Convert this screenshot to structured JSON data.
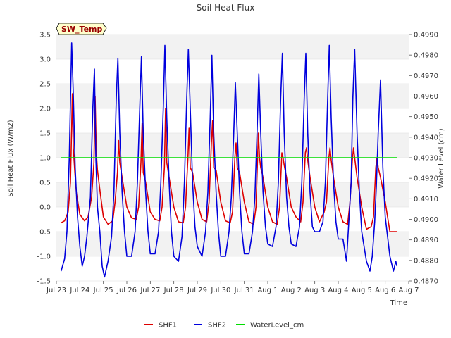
{
  "chart_data": {
    "type": "line",
    "title": "Soil Heat Flux",
    "xlabel": "Time",
    "ylabel": "Soil Heat Flux (W/m2)",
    "y2label": "Water Level (cm)",
    "annotation": "SW_Temp",
    "xlim": [
      0,
      15
    ],
    "ylim": [
      -1.5,
      3.5
    ],
    "y2lim": [
      0.487,
      0.499
    ],
    "x_ticks": [
      {
        "value": 0,
        "label": "Jul 23"
      },
      {
        "value": 1,
        "label": "Jul 24"
      },
      {
        "value": 2,
        "label": "Jul 25"
      },
      {
        "value": 3,
        "label": "Jul 26"
      },
      {
        "value": 4,
        "label": "Jul 27"
      },
      {
        "value": 5,
        "label": "Jul 28"
      },
      {
        "value": 6,
        "label": "Jul 29"
      },
      {
        "value": 7,
        "label": "Jul 30"
      },
      {
        "value": 8,
        "label": "Jul 31"
      },
      {
        "value": 9,
        "label": "Aug 1"
      },
      {
        "value": 10,
        "label": "Aug 2"
      },
      {
        "value": 11,
        "label": "Aug 3"
      },
      {
        "value": 12,
        "label": "Aug 4"
      },
      {
        "value": 13,
        "label": "Aug 5"
      },
      {
        "value": 14,
        "label": "Aug 6"
      },
      {
        "value": 15,
        "label": "Aug 7"
      }
    ],
    "y_ticks": [
      {
        "value": -1.5,
        "label": "-1.5"
      },
      {
        "value": -1.0,
        "label": "-1.0"
      },
      {
        "value": -0.5,
        "label": "-0.5"
      },
      {
        "value": 0.0,
        "label": "0.0"
      },
      {
        "value": 0.5,
        "label": "0.5"
      },
      {
        "value": 1.0,
        "label": "1.0"
      },
      {
        "value": 1.5,
        "label": "1.5"
      },
      {
        "value": 2.0,
        "label": "2.0"
      },
      {
        "value": 2.5,
        "label": "2.5"
      },
      {
        "value": 3.0,
        "label": "3.0"
      },
      {
        "value": 3.5,
        "label": "3.5"
      }
    ],
    "y2_ticks": [
      {
        "value": 0.487,
        "label": "0.4870"
      },
      {
        "value": 0.488,
        "label": "0.4880"
      },
      {
        "value": 0.489,
        "label": "0.4890"
      },
      {
        "value": 0.49,
        "label": "0.4900"
      },
      {
        "value": 0.491,
        "label": "0.4910"
      },
      {
        "value": 0.492,
        "label": "0.4920"
      },
      {
        "value": 0.493,
        "label": "0.4930"
      },
      {
        "value": 0.494,
        "label": "0.4940"
      },
      {
        "value": 0.495,
        "label": "0.4950"
      },
      {
        "value": 0.496,
        "label": "0.4960"
      },
      {
        "value": 0.497,
        "label": "0.4970"
      },
      {
        "value": 0.498,
        "label": "0.4980"
      },
      {
        "value": 0.499,
        "label": "0.4990"
      }
    ],
    "series": [
      {
        "name": "SHF1",
        "color": "#dd0000",
        "axis": "left",
        "x": [
          0.2,
          0.35,
          0.5,
          0.6,
          0.68,
          0.72,
          0.78,
          0.85,
          1.0,
          1.2,
          1.35,
          1.5,
          1.6,
          1.65,
          1.7,
          1.75,
          1.85,
          2.0,
          2.2,
          2.4,
          2.5,
          2.6,
          2.65,
          2.7,
          2.8,
          3.0,
          3.2,
          3.4,
          3.5,
          3.6,
          3.65,
          3.7,
          3.8,
          4.0,
          4.2,
          4.4,
          4.5,
          4.6,
          4.65,
          4.7,
          4.8,
          5.0,
          5.2,
          5.4,
          5.5,
          5.6,
          5.65,
          5.7,
          5.8,
          6.0,
          6.2,
          6.4,
          6.5,
          6.6,
          6.65,
          6.7,
          6.8,
          7.0,
          7.2,
          7.4,
          7.5,
          7.6,
          7.65,
          7.7,
          7.8,
          8.0,
          8.2,
          8.4,
          8.5,
          8.6,
          8.65,
          8.7,
          8.8,
          9.0,
          9.2,
          9.4,
          9.5,
          9.6,
          9.65,
          9.7,
          9.8,
          10.0,
          10.2,
          10.4,
          10.5,
          10.6,
          10.65,
          10.7,
          10.8,
          11.0,
          11.2,
          11.4,
          11.5,
          11.6,
          11.65,
          11.7,
          11.8,
          12.0,
          12.2,
          12.4,
          12.5,
          12.6,
          12.65,
          12.7,
          12.8,
          13.0,
          13.2,
          13.4,
          13.5,
          13.6,
          13.65,
          13.7,
          13.8,
          14.0,
          14.2,
          14.4,
          14.5
        ],
        "values": [
          -0.32,
          -0.28,
          -0.1,
          0.5,
          2.3,
          1.2,
          0.75,
          0.3,
          -0.15,
          -0.28,
          -0.2,
          0.2,
          0.9,
          2.25,
          1.1,
          0.75,
          0.35,
          -0.2,
          -0.35,
          -0.28,
          0.1,
          0.7,
          1.35,
          0.9,
          0.6,
          0.0,
          -0.22,
          -0.25,
          0.0,
          0.9,
          1.7,
          0.7,
          0.5,
          -0.1,
          -0.25,
          -0.28,
          0.0,
          0.8,
          2.0,
          0.9,
          0.6,
          0.0,
          -0.3,
          -0.32,
          0.0,
          1.0,
          1.6,
          0.8,
          0.7,
          0.1,
          -0.25,
          -0.3,
          0.1,
          1.3,
          1.75,
          0.8,
          0.75,
          0.1,
          -0.28,
          -0.32,
          -0.1,
          1.0,
          1.3,
          0.8,
          0.7,
          0.1,
          -0.3,
          -0.35,
          0.0,
          1.5,
          1.0,
          0.8,
          0.6,
          0.0,
          -0.3,
          -0.35,
          0.0,
          1.1,
          1.0,
          0.85,
          0.6,
          0.0,
          -0.2,
          -0.3,
          0.1,
          1.1,
          1.2,
          0.95,
          0.6,
          0.0,
          -0.3,
          -0.1,
          0.1,
          1.0,
          1.2,
          0.95,
          0.6,
          0.0,
          -0.3,
          -0.35,
          0.1,
          0.95,
          1.2,
          1.0,
          0.6,
          0.0,
          -0.45,
          -0.4,
          -0.2,
          0.8,
          1.0,
          0.8,
          0.6,
          0.1,
          -0.5,
          -0.5,
          -0.5
        ]
      },
      {
        "name": "SHF2",
        "color": "#0000dd",
        "axis": "left",
        "x": [
          0.2,
          0.35,
          0.45,
          0.55,
          0.65,
          0.72,
          0.8,
          0.9,
          1.0,
          1.1,
          1.2,
          1.3,
          1.45,
          1.55,
          1.62,
          1.68,
          1.75,
          1.85,
          1.95,
          2.05,
          2.2,
          2.35,
          2.45,
          2.55,
          2.62,
          2.7,
          2.8,
          2.9,
          3.0,
          3.2,
          3.35,
          3.45,
          3.55,
          3.62,
          3.7,
          3.8,
          3.9,
          4.0,
          4.2,
          4.35,
          4.45,
          4.55,
          4.62,
          4.7,
          4.8,
          4.9,
          5.0,
          5.2,
          5.35,
          5.45,
          5.55,
          5.62,
          5.7,
          5.8,
          5.9,
          6.0,
          6.2,
          6.35,
          6.45,
          6.55,
          6.62,
          6.7,
          6.8,
          6.9,
          7.0,
          7.2,
          7.35,
          7.45,
          7.55,
          7.62,
          7.7,
          7.8,
          7.9,
          8.0,
          8.2,
          8.35,
          8.45,
          8.55,
          8.62,
          8.7,
          8.8,
          8.9,
          9.0,
          9.2,
          9.35,
          9.45,
          9.55,
          9.62,
          9.7,
          9.8,
          9.9,
          10.0,
          10.2,
          10.35,
          10.45,
          10.55,
          10.62,
          10.7,
          10.8,
          10.9,
          11.0,
          11.2,
          11.35,
          11.45,
          11.55,
          11.62,
          11.7,
          11.8,
          11.9,
          12.0,
          12.2,
          12.35,
          12.45,
          12.55,
          12.62,
          12.7,
          12.8,
          12.9,
          13.0,
          13.2,
          13.35,
          13.45,
          13.55,
          13.62,
          13.7,
          13.8,
          13.9,
          14.0,
          14.2,
          14.35,
          14.45,
          14.5
        ],
        "values": [
          -1.3,
          -1.05,
          -0.5,
          1.0,
          3.33,
          2.3,
          0.8,
          -0.2,
          -0.8,
          -1.2,
          -1.0,
          -0.6,
          0.2,
          2.0,
          2.8,
          1.0,
          0.0,
          -0.5,
          -1.2,
          -1.42,
          -1.1,
          -0.6,
          0.3,
          2.2,
          3.02,
          1.5,
          0.3,
          -0.5,
          -1.0,
          -1.0,
          -0.5,
          0.5,
          2.0,
          3.05,
          1.5,
          0.3,
          -0.5,
          -0.95,
          -0.95,
          -0.5,
          0.5,
          2.0,
          3.28,
          1.8,
          0.5,
          -0.5,
          -1.0,
          -1.1,
          -0.6,
          0.5,
          2.2,
          3.2,
          2.0,
          0.5,
          -0.4,
          -0.8,
          -1.0,
          -0.5,
          0.3,
          1.8,
          3.08,
          1.5,
          0.3,
          -0.5,
          -1.0,
          -1.0,
          -0.5,
          0.2,
          1.5,
          2.52,
          1.5,
          0.3,
          -0.5,
          -0.95,
          -0.95,
          -0.5,
          0.2,
          1.6,
          2.7,
          1.5,
          0.3,
          -0.4,
          -0.75,
          -0.8,
          -0.4,
          0.5,
          2.2,
          3.12,
          1.5,
          0.2,
          -0.4,
          -0.75,
          -0.8,
          -0.4,
          0.5,
          2.2,
          3.12,
          1.5,
          0.3,
          -0.4,
          -0.5,
          -0.5,
          -0.3,
          0.5,
          2.2,
          3.28,
          1.8,
          0.5,
          -0.3,
          -0.65,
          -0.65,
          -1.1,
          -0.3,
          0.5,
          2.2,
          3.2,
          1.5,
          0.3,
          -0.5,
          -1.1,
          -1.3,
          -1.0,
          -0.3,
          0.4,
          1.5,
          2.58,
          0.8,
          -0.2,
          -1.0,
          -1.3,
          -1.1,
          -1.2
        ]
      },
      {
        "name": "WaterLevel_cm",
        "color": "#00dd00",
        "axis": "right",
        "x": [
          0.2,
          14.5
        ],
        "values": [
          0.493,
          0.493
        ]
      }
    ]
  }
}
